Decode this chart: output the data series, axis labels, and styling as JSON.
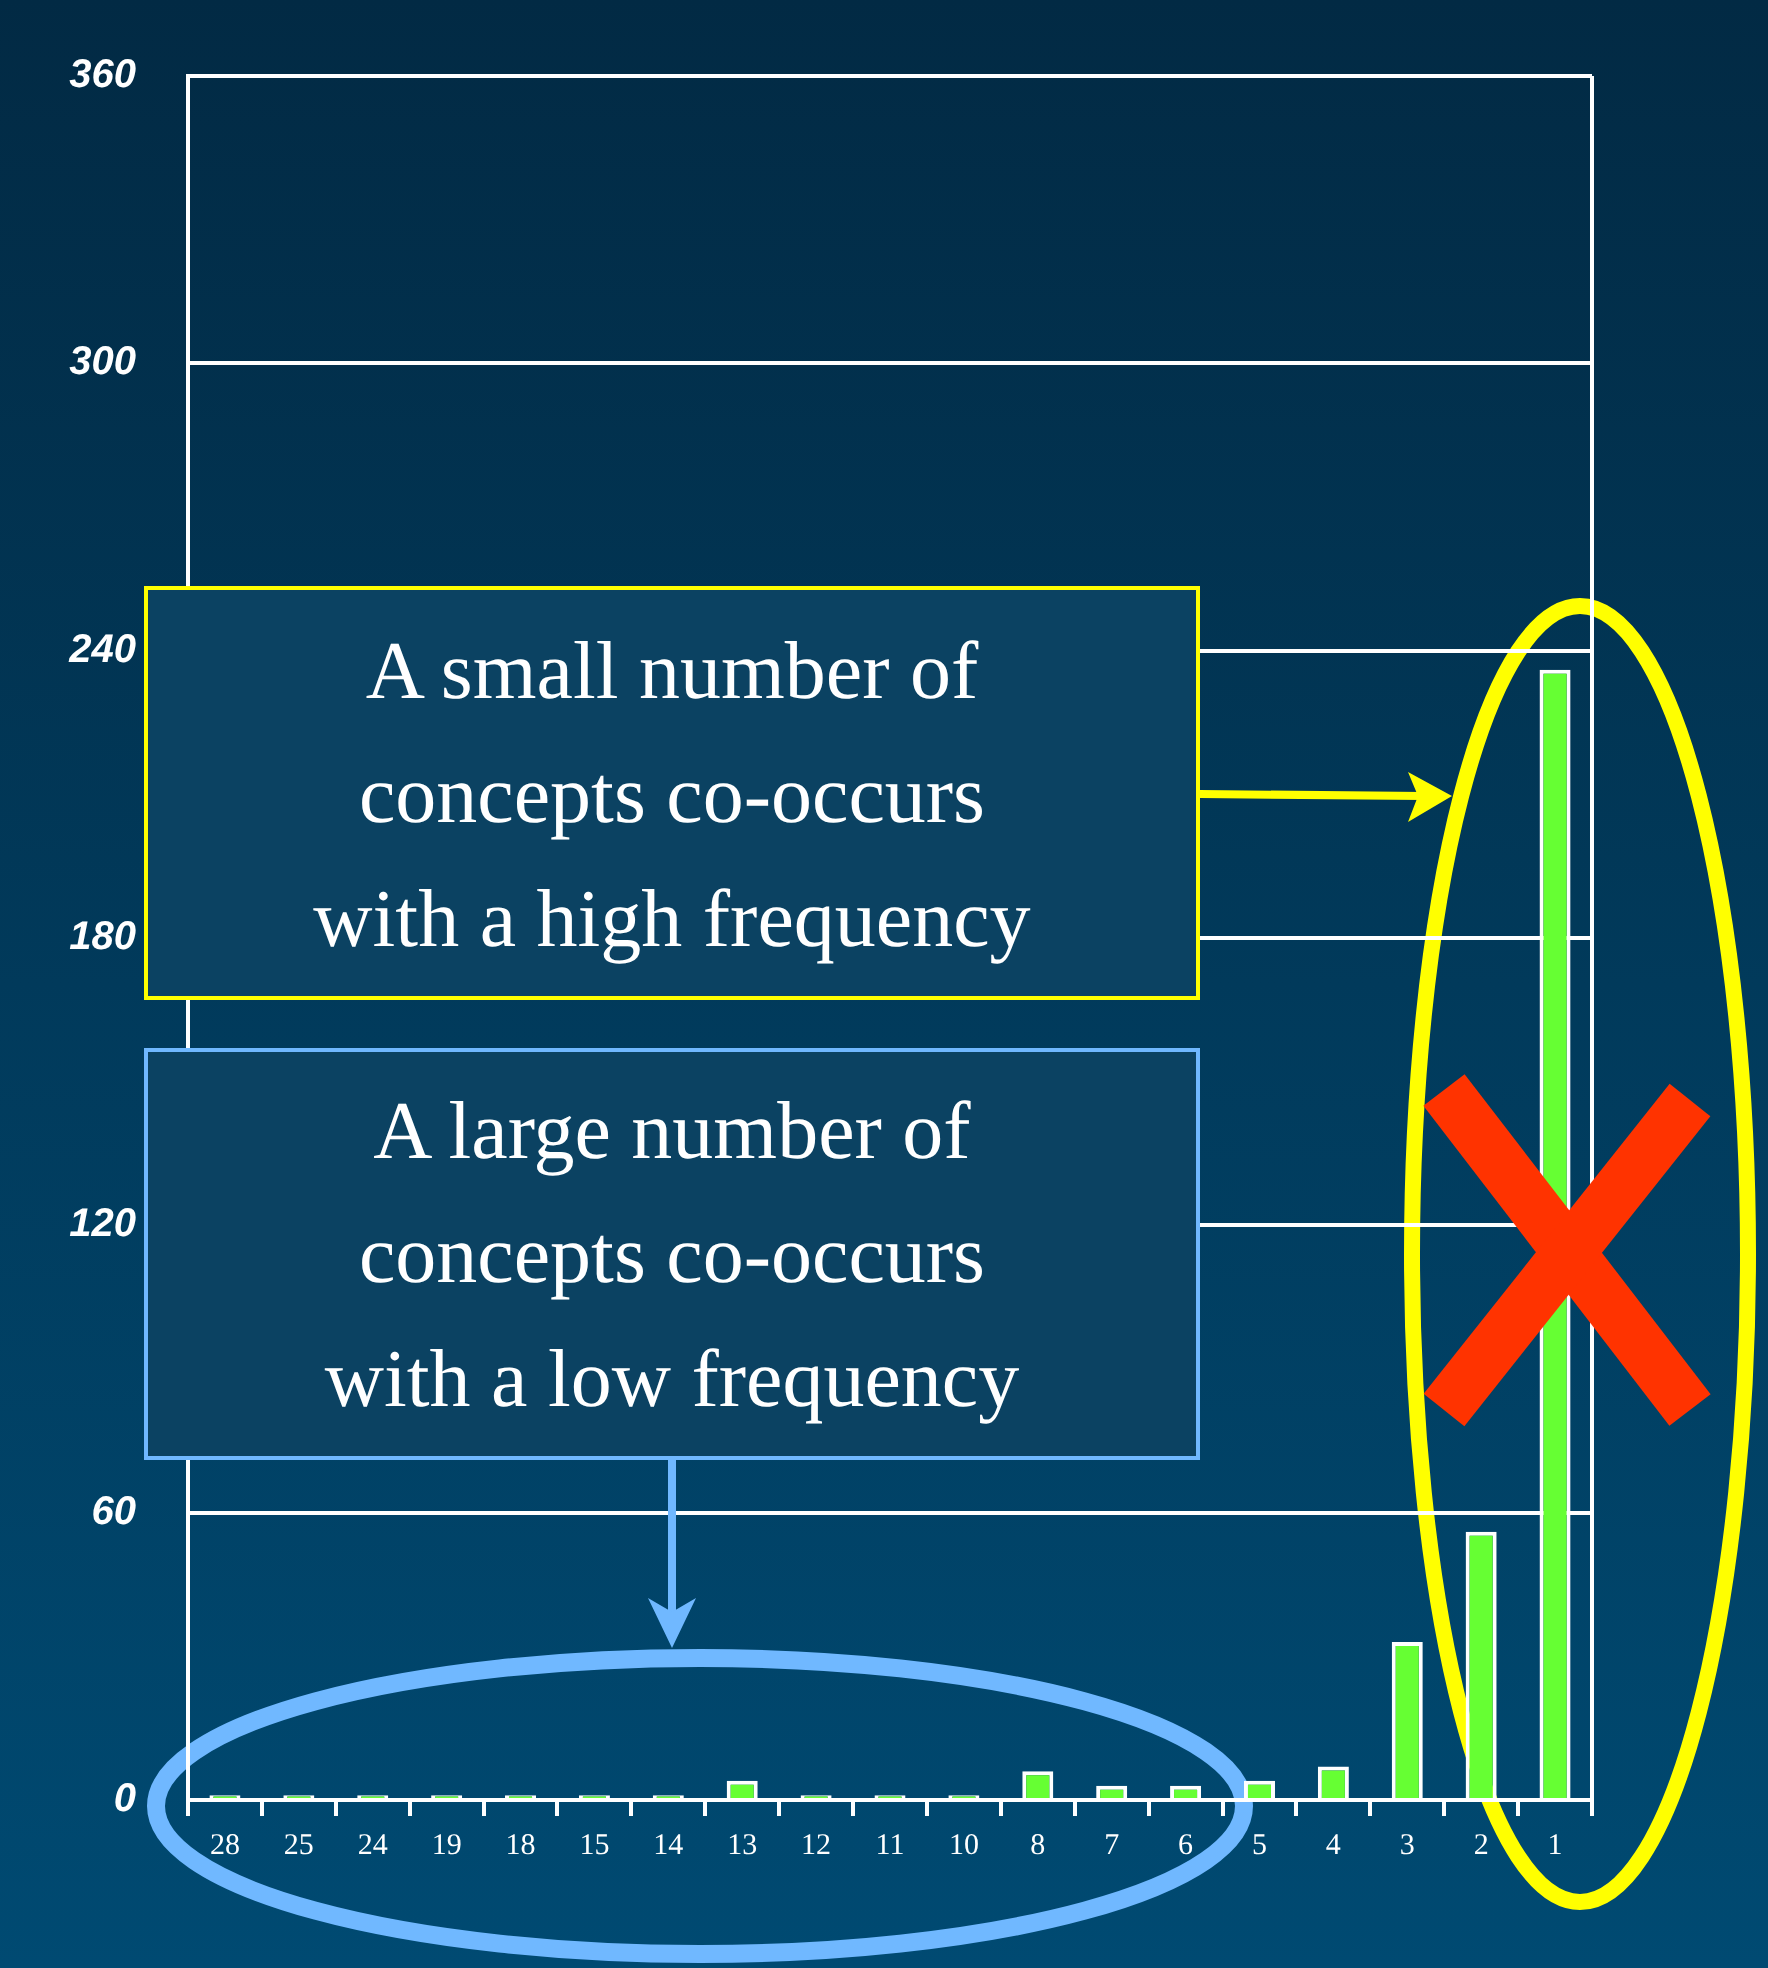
{
  "chart_data": {
    "type": "bar",
    "categories": [
      "28",
      "25",
      "24",
      "19",
      "18",
      "15",
      "14",
      "13",
      "12",
      "11",
      "10",
      "8",
      "7",
      "6",
      "5",
      "4",
      "3",
      "2",
      "1"
    ],
    "values": [
      1,
      1,
      1,
      1,
      1,
      1,
      1,
      4,
      1,
      1,
      1,
      6,
      3,
      3,
      4,
      7,
      33,
      56,
      236
    ],
    "color": "#66ff33",
    "ylim": [
      0,
      360
    ],
    "yticks": [
      0,
      60,
      120,
      180,
      240,
      300,
      360
    ],
    "grid": "y",
    "legend": false,
    "annotations": [
      "A small number of concepts co-occurs with a high frequency",
      "A large number of concepts co-occurs with a low frequency"
    ]
  }
}
